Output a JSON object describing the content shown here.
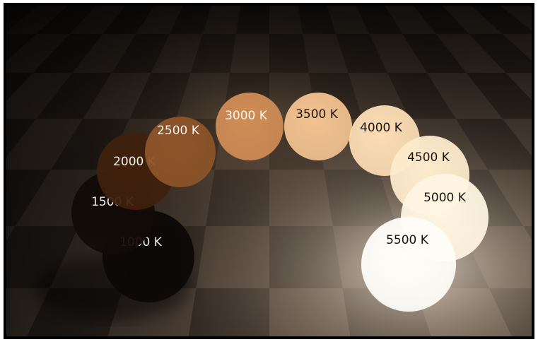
{
  "scene": {
    "description_free": true,
    "spheres": [
      {
        "label": "1000 K",
        "color": "#0b0807",
        "text_color": "#f3efea"
      },
      {
        "label": "1500 K",
        "color": "#120a06",
        "text_color": "#f3efea"
      },
      {
        "label": "2000 K",
        "color": "#3f200d",
        "text_color": "#f6f1ea"
      },
      {
        "label": "2500 K",
        "color": "#8d5429",
        "text_color": "#f8f3ec"
      },
      {
        "label": "3000 K",
        "color": "#cf8c55",
        "text_color": "#fbf6f0"
      },
      {
        "label": "3500 K",
        "color": "#f2c18f",
        "text_color": "#1c140c"
      },
      {
        "label": "4000 K",
        "color": "#fbdcb4",
        "text_color": "#1c140c"
      },
      {
        "label": "4500 K",
        "color": "#fdebcc",
        "text_color": "#1c140c"
      },
      {
        "label": "5000 K",
        "color": "#fff5e2",
        "text_color": "#1c140c"
      },
      {
        "label": "5500 K",
        "color": "#fffdf8",
        "text_color": "#1c140c"
      }
    ],
    "floor_colors": {
      "light": "#4a3d33",
      "dark": "#2c241e",
      "glow": "#fff3e0"
    }
  }
}
